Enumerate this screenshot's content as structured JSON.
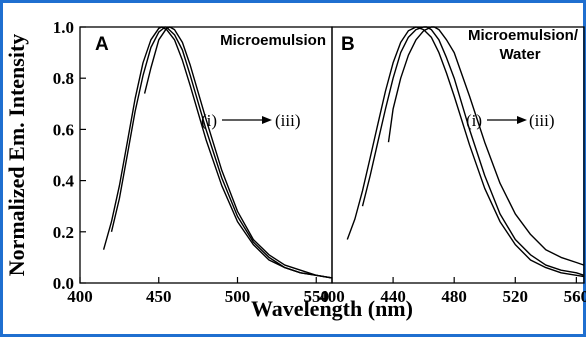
{
  "chart_data": [
    {
      "type": "line",
      "panel": "A",
      "title": "Microemulsion",
      "annotation": {
        "start": "(i)",
        "end": "(iii)"
      },
      "xlabel": "Wavelength (nm)",
      "ylabel": "Normalized Em. Intensity",
      "xlim": [
        400,
        560
      ],
      "ylim": [
        0.0,
        1.0
      ],
      "xticks": [
        400,
        450,
        500,
        550
      ],
      "xtick_labels": [
        "400",
        "450",
        "500",
        "550"
      ],
      "yticks": [
        0.0,
        0.2,
        0.4,
        0.6,
        0.8,
        1.0
      ],
      "ytick_labels": [
        "0.0",
        "0.2",
        "0.4",
        "0.6",
        "0.8",
        "1.0"
      ],
      "series": [
        {
          "x": [
            415,
            420,
            425,
            430,
            435,
            440,
            445,
            450,
            452,
            455,
            460,
            465,
            470,
            480,
            490,
            500,
            510,
            520,
            530,
            540,
            550,
            560
          ],
          "y": [
            0.13,
            0.24,
            0.38,
            0.55,
            0.72,
            0.86,
            0.95,
            0.995,
            1.0,
            0.99,
            0.95,
            0.87,
            0.77,
            0.56,
            0.38,
            0.24,
            0.15,
            0.09,
            0.06,
            0.04,
            0.03,
            0.02
          ]
        },
        {
          "x": [
            420,
            425,
            430,
            435,
            440,
            445,
            450,
            454,
            455,
            460,
            465,
            470,
            480,
            490,
            500,
            510,
            520,
            530,
            540,
            550,
            560
          ],
          "y": [
            0.2,
            0.33,
            0.5,
            0.67,
            0.81,
            0.92,
            0.98,
            1.0,
            0.999,
            0.97,
            0.91,
            0.81,
            0.6,
            0.41,
            0.26,
            0.16,
            0.1,
            0.06,
            0.04,
            0.03,
            0.02
          ]
        },
        {
          "x": [
            441,
            445,
            450,
            455,
            457,
            460,
            465,
            470,
            480,
            490,
            500,
            510,
            520,
            530,
            540,
            550,
            560
          ],
          "y": [
            0.74,
            0.84,
            0.95,
            0.995,
            1.0,
            0.99,
            0.94,
            0.85,
            0.64,
            0.44,
            0.28,
            0.17,
            0.11,
            0.07,
            0.05,
            0.03,
            0.02
          ]
        }
      ]
    },
    {
      "type": "line",
      "panel": "B",
      "title": "Microemulsion/ Water",
      "title_lines": [
        "Microemulsion/",
        "Water"
      ],
      "annotation": {
        "start": "(i)",
        "end": "(iii)"
      },
      "xlabel": "Wavelength (nm)",
      "xlim": [
        400,
        565
      ],
      "ylim": [
        0.0,
        1.0
      ],
      "xticks": [
        400,
        440,
        480,
        520,
        560
      ],
      "xtick_labels": [
        "400",
        "440",
        "480",
        "520",
        "560"
      ],
      "series": [
        {
          "x": [
            410,
            415,
            420,
            425,
            430,
            435,
            440,
            445,
            450,
            455,
            460,
            465,
            470,
            475,
            480,
            490,
            500,
            510,
            520,
            530,
            540,
            550,
            560,
            565
          ],
          "y": [
            0.17,
            0.25,
            0.36,
            0.49,
            0.62,
            0.75,
            0.86,
            0.94,
            0.985,
            1.0,
            0.99,
            0.96,
            0.9,
            0.82,
            0.73,
            0.54,
            0.37,
            0.24,
            0.15,
            0.09,
            0.06,
            0.04,
            0.03,
            0.025
          ]
        },
        {
          "x": [
            420,
            425,
            430,
            435,
            440,
            445,
            450,
            455,
            460,
            462,
            465,
            470,
            475,
            480,
            490,
            500,
            510,
            520,
            530,
            540,
            550,
            560,
            565
          ],
          "y": [
            0.3,
            0.42,
            0.55,
            0.68,
            0.8,
            0.9,
            0.96,
            0.99,
            1.0,
            1.0,
            0.99,
            0.95,
            0.88,
            0.8,
            0.6,
            0.42,
            0.27,
            0.17,
            0.11,
            0.07,
            0.05,
            0.04,
            0.03
          ]
        },
        {
          "x": [
            437,
            440,
            445,
            450,
            455,
            460,
            465,
            467,
            470,
            475,
            480,
            490,
            500,
            510,
            520,
            530,
            540,
            550,
            560,
            565
          ],
          "y": [
            0.55,
            0.68,
            0.8,
            0.89,
            0.95,
            0.985,
            1.0,
            1.0,
            0.99,
            0.95,
            0.9,
            0.73,
            0.55,
            0.39,
            0.27,
            0.19,
            0.13,
            0.1,
            0.08,
            0.07
          ]
        }
      ]
    }
  ]
}
